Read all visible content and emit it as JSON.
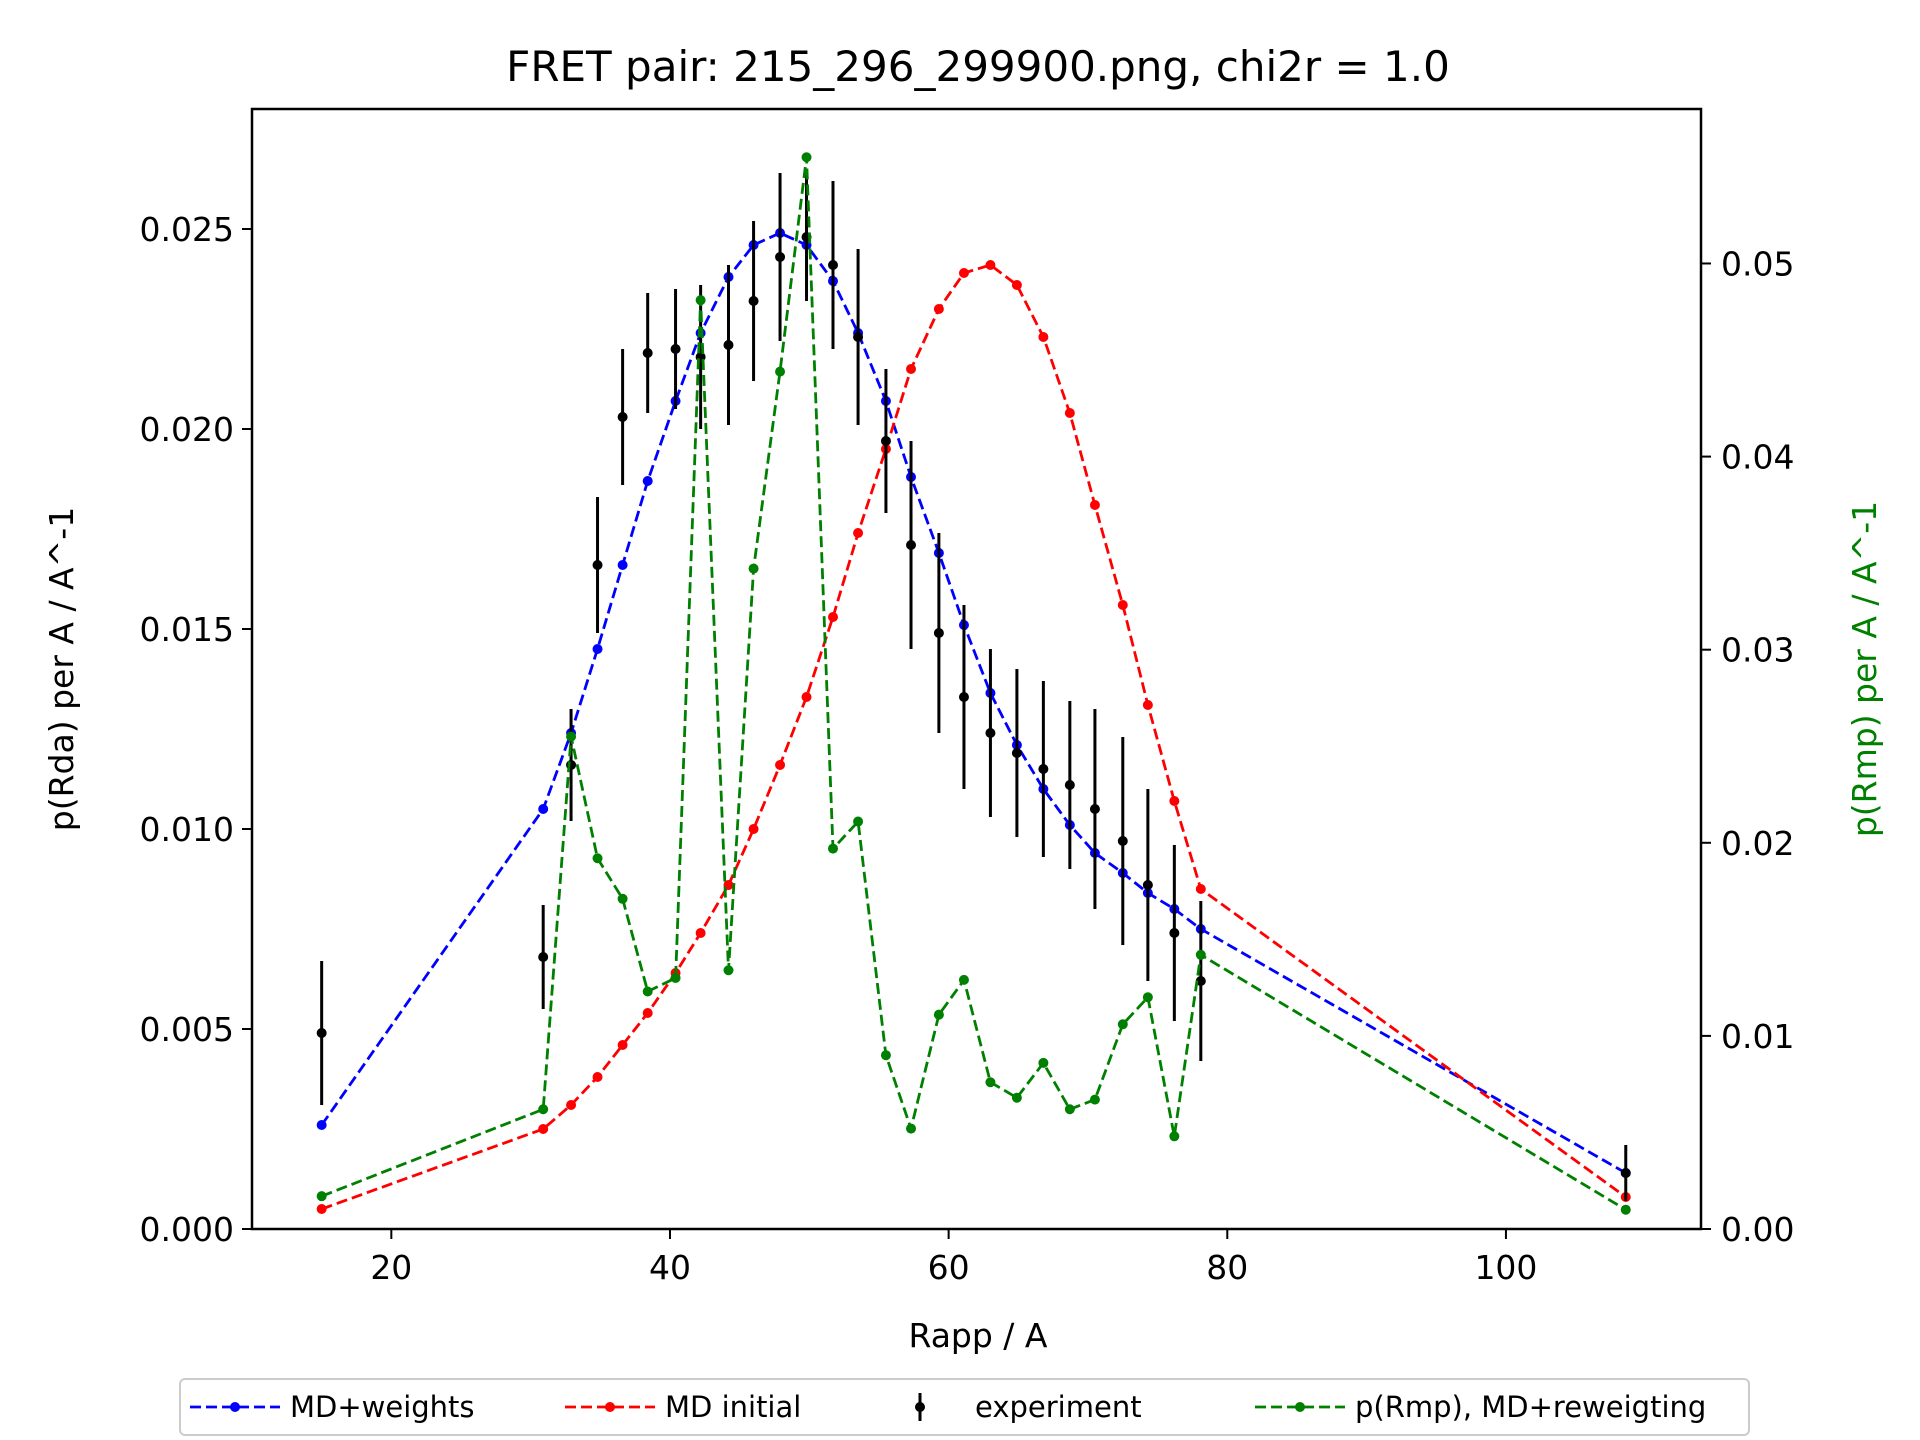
{
  "chart_data": {
    "type": "line",
    "title": "FRET pair: 215_296_299900.png, chi2r = 1.0",
    "xlabel": "Rapp / A",
    "ylabel": "p(Rda) per A / A^-1",
    "ylabel_right": "p(Rmp) per A / A^-1",
    "xlim": [
      10,
      114
    ],
    "ylim": [
      0,
      0.028
    ],
    "ylim_right": [
      0,
      0.058
    ],
    "x_ticks": [
      20,
      40,
      60,
      80,
      100
    ],
    "x_tick_labels": [
      "20",
      "40",
      "60",
      "80",
      "100"
    ],
    "y_ticks": [
      0,
      0.005,
      0.01,
      0.015,
      0.02,
      0.025
    ],
    "y_tick_labels": [
      "0.000",
      "0.005",
      "0.010",
      "0.015",
      "0.020",
      "0.025"
    ],
    "y_ticks_right": [
      0,
      0.01,
      0.02,
      0.03,
      0.04,
      0.05
    ],
    "y_tick_labels_right": [
      "0.00",
      "0.01",
      "0.02",
      "0.03",
      "0.04",
      "0.05"
    ],
    "grid": false,
    "legend_position": "bottom-outside",
    "series": [
      {
        "name": "MD+weights",
        "axis": "left",
        "style": "dashed-line-dots",
        "color": "#0000ff",
        "x": [
          15.0,
          30.9,
          32.9,
          34.8,
          36.6,
          38.4,
          40.4,
          42.2,
          44.2,
          46.0,
          47.9,
          49.8,
          51.7,
          53.5,
          55.5,
          57.3,
          59.3,
          61.1,
          63.0,
          64.9,
          66.8,
          68.7,
          70.5,
          72.5,
          74.3,
          76.2,
          78.1,
          108.6
        ],
        "y": [
          0.0026,
          0.0105,
          0.0124,
          0.0145,
          0.0166,
          0.0187,
          0.0207,
          0.0224,
          0.0238,
          0.0246,
          0.0249,
          0.0246,
          0.0237,
          0.0224,
          0.0207,
          0.0188,
          0.0169,
          0.0151,
          0.0134,
          0.0121,
          0.011,
          0.0101,
          0.0094,
          0.0089,
          0.0084,
          0.008,
          0.0075,
          0.0014
        ]
      },
      {
        "name": "MD initial",
        "axis": "left",
        "style": "dashed-line-dots",
        "color": "#ff0000",
        "x": [
          15.0,
          30.9,
          32.9,
          34.8,
          36.6,
          38.4,
          40.4,
          42.2,
          44.2,
          46.0,
          47.9,
          49.8,
          51.7,
          53.5,
          55.5,
          57.3,
          59.3,
          61.1,
          63.0,
          64.9,
          66.8,
          68.7,
          70.5,
          72.5,
          74.3,
          76.2,
          78.1,
          108.6
        ],
        "y": [
          0.0005,
          0.0025,
          0.0031,
          0.0038,
          0.0046,
          0.0054,
          0.0064,
          0.0074,
          0.0086,
          0.01,
          0.0116,
          0.0133,
          0.0153,
          0.0174,
          0.0195,
          0.0215,
          0.023,
          0.0239,
          0.0241,
          0.0236,
          0.0223,
          0.0204,
          0.0181,
          0.0156,
          0.0131,
          0.0107,
          0.0085,
          0.0008
        ]
      },
      {
        "name": "experiment",
        "axis": "left",
        "style": "errorbar",
        "color": "#000000",
        "x": [
          15.0,
          30.9,
          32.9,
          34.8,
          36.6,
          38.4,
          40.4,
          42.2,
          44.2,
          46.0,
          47.9,
          49.8,
          51.7,
          53.5,
          55.5,
          57.3,
          59.3,
          61.1,
          63.0,
          64.9,
          66.8,
          68.7,
          70.5,
          72.5,
          74.3,
          76.2,
          78.1,
          108.6
        ],
        "y": [
          0.0049,
          0.0068,
          0.0116,
          0.0166,
          0.0203,
          0.0219,
          0.022,
          0.0218,
          0.0221,
          0.0232,
          0.0243,
          0.0248,
          0.0241,
          0.0223,
          0.0197,
          0.0171,
          0.0149,
          0.0133,
          0.0124,
          0.0119,
          0.0115,
          0.0111,
          0.0105,
          0.0097,
          0.0086,
          0.0074,
          0.0062,
          0.0014
        ],
        "yerr": [
          0.0018,
          0.0013,
          0.0014,
          0.0017,
          0.0017,
          0.0015,
          0.0015,
          0.0018,
          0.002,
          0.002,
          0.0021,
          0.0016,
          0.0021,
          0.0022,
          0.0018,
          0.0026,
          0.0025,
          0.0023,
          0.0021,
          0.0021,
          0.0022,
          0.0021,
          0.0025,
          0.0026,
          0.0024,
          0.0022,
          0.002,
          0.0007
        ]
      },
      {
        "name": "p(Rmp), MD+reweigting",
        "axis": "right",
        "style": "dashed-line-dots",
        "color": "#008000",
        "x": [
          15.0,
          30.9,
          32.9,
          34.8,
          36.6,
          38.4,
          40.4,
          42.2,
          44.2,
          46.0,
          47.9,
          49.8,
          51.7,
          53.5,
          55.5,
          57.3,
          59.3,
          61.1,
          63.0,
          64.9,
          66.8,
          68.7,
          70.5,
          72.5,
          74.3,
          76.2,
          78.1,
          108.6
        ],
        "y": [
          0.0017,
          0.0062,
          0.0255,
          0.0192,
          0.0171,
          0.0123,
          0.013,
          0.0481,
          0.0134,
          0.0342,
          0.0444,
          0.0555,
          0.0197,
          0.0211,
          0.009,
          0.0052,
          0.0111,
          0.0129,
          0.0076,
          0.0068,
          0.0086,
          0.0062,
          0.0067,
          0.0106,
          0.012,
          0.0048,
          0.0142,
          0.001
        ]
      }
    ]
  }
}
